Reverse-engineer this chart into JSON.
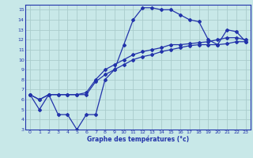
{
  "xlabel": "Graphe des températures (°c)",
  "bg_color": "#c8e8e8",
  "grid_color": "#aacccc",
  "line_color": "#2233aa",
  "border_color": "#2233aa",
  "xlim": [
    -0.5,
    23.5
  ],
  "ylim": [
    3,
    15.5
  ],
  "xticks": [
    0,
    1,
    2,
    3,
    4,
    5,
    6,
    7,
    8,
    9,
    10,
    11,
    12,
    13,
    14,
    15,
    16,
    17,
    18,
    19,
    20,
    21,
    22,
    23
  ],
  "yticks": [
    3,
    4,
    5,
    6,
    7,
    8,
    9,
    10,
    11,
    12,
    13,
    14,
    15
  ],
  "curve1_x": [
    0,
    1,
    2,
    3,
    4,
    5,
    6,
    7,
    8,
    9,
    10,
    11,
    12,
    13,
    14,
    15,
    16,
    17,
    18,
    19,
    20,
    21,
    22,
    23
  ],
  "curve1_y": [
    6.5,
    5.0,
    6.5,
    4.5,
    4.5,
    3.0,
    4.5,
    4.5,
    8.0,
    9.0,
    11.5,
    14.0,
    15.2,
    15.2,
    15.0,
    15.0,
    14.5,
    14.0,
    13.8,
    12.0,
    11.5,
    13.0,
    12.8,
    11.8
  ],
  "curve2_x": [
    0,
    1,
    2,
    3,
    4,
    5,
    6,
    7,
    8,
    9,
    10,
    11,
    12,
    13,
    14,
    15,
    16,
    17,
    18,
    19,
    20,
    21,
    22,
    23
  ],
  "curve2_y": [
    6.5,
    6.0,
    6.5,
    6.5,
    6.5,
    6.5,
    6.5,
    7.8,
    8.5,
    9.0,
    9.5,
    10.0,
    10.3,
    10.5,
    10.8,
    11.0,
    11.2,
    11.4,
    11.5,
    11.5,
    11.5,
    11.6,
    11.8,
    11.8
  ],
  "curve3_x": [
    0,
    1,
    2,
    3,
    4,
    5,
    6,
    7,
    8,
    9,
    10,
    11,
    12,
    13,
    14,
    15,
    16,
    17,
    18,
    19,
    20,
    21,
    22,
    23
  ],
  "curve3_y": [
    6.5,
    6.0,
    6.5,
    6.5,
    6.5,
    6.5,
    6.7,
    8.0,
    9.0,
    9.5,
    10.0,
    10.5,
    10.8,
    11.0,
    11.2,
    11.5,
    11.5,
    11.6,
    11.7,
    11.8,
    12.0,
    12.2,
    12.2,
    12.0
  ]
}
